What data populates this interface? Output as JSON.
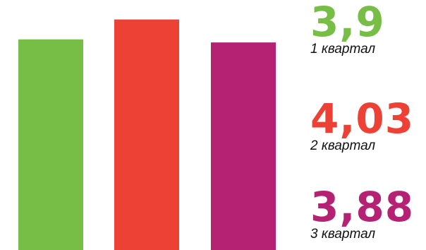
{
  "chart_data": {
    "type": "bar",
    "categories": [
      "1 квартал",
      "2 квартал",
      "3 квартал"
    ],
    "values": [
      3.9,
      4.03,
      3.88
    ],
    "value_labels": [
      "3,9",
      "4,03",
      "3,88"
    ],
    "colors": [
      "#77BE46",
      "#EE4136",
      "#B52274"
    ],
    "title": "",
    "xlabel": "",
    "ylabel": "",
    "grid": false,
    "legend": "right"
  }
}
